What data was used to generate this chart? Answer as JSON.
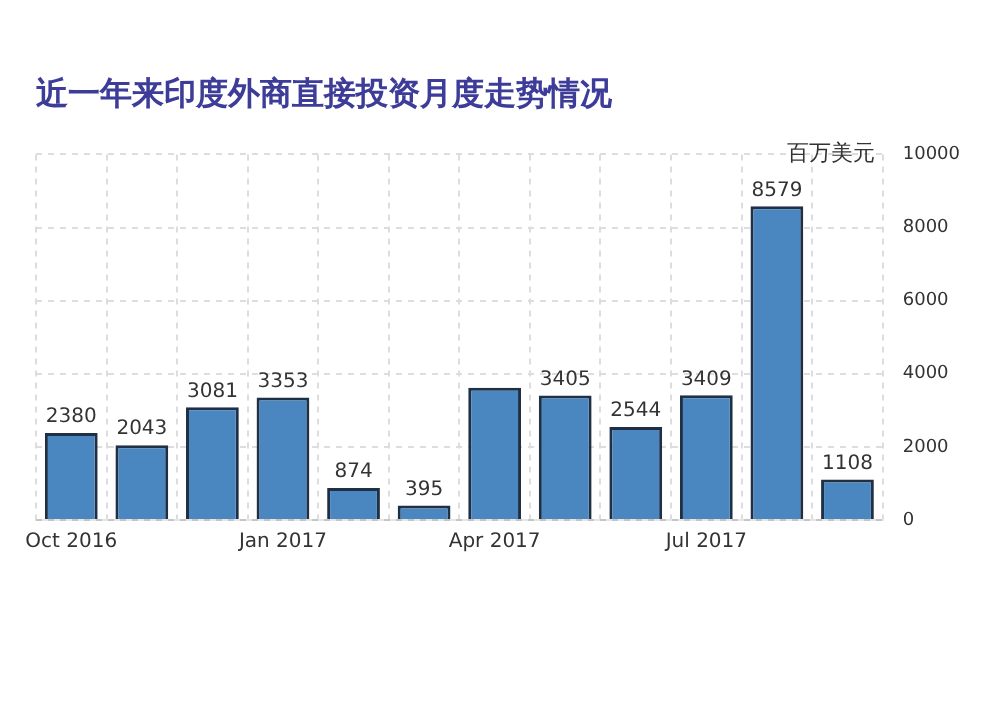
{
  "chart_data": {
    "type": "bar",
    "title": "近一年来印度外商直接投资月度走势情况",
    "ylabel": "百万美元",
    "categories": [
      "Oct 2016",
      null,
      null,
      "Jan 2017",
      null,
      null,
      "Apr 2017",
      null,
      null,
      "Jul 2017",
      null,
      null
    ],
    "values": [
      2380,
      2043,
      3081,
      3353,
      874,
      395,
      3620,
      3405,
      2544,
      3409,
      8579,
      1108
    ],
    "value_labels": [
      "2380",
      "2043",
      "3081",
      "3353",
      "874",
      "395",
      null,
      "3405",
      "2544",
      "3409",
      "8579",
      "1108"
    ],
    "color": "#4a86c0",
    "ylim": [
      0,
      10000
    ],
    "yticks": [
      0,
      2000,
      4000,
      6000,
      8000,
      10000
    ],
    "grid": true
  }
}
